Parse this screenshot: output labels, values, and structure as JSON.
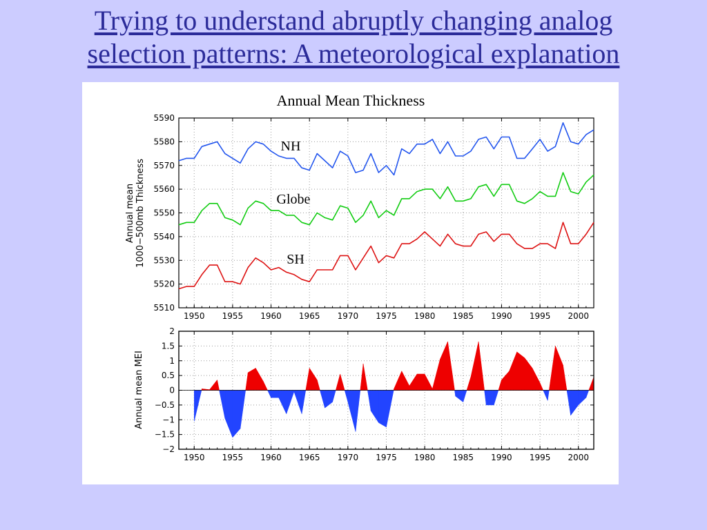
{
  "slide": {
    "title_line1": "Trying to understand abruptly changing analog",
    "title_line2": "selection patterns: A meteorological explanation"
  },
  "colors": {
    "background": "#ccccff",
    "title": "#2b2b99",
    "nh": "#2255ee",
    "globe": "#11cc11",
    "sh": "#dd1111",
    "positive_fill": "#ee0000",
    "negative_fill": "#2244ff"
  },
  "chart_data": [
    {
      "type": "line",
      "title": "Annual Mean Thickness",
      "ylabel_line1": "Annual mean",
      "ylabel_line2": "1000−500mb Thickness",
      "xlabel": "",
      "xlim": [
        1948,
        2002
      ],
      "ylim": [
        5510,
        5590
      ],
      "grid": true,
      "xticks": [
        1950,
        1955,
        1960,
        1965,
        1970,
        1975,
        1980,
        1985,
        1990,
        1995,
        2000
      ],
      "yticks": [
        5510,
        5520,
        5530,
        5540,
        5550,
        5560,
        5570,
        5580,
        5590
      ],
      "x": [
        1948,
        1949,
        1950,
        1951,
        1952,
        1953,
        1954,
        1955,
        1956,
        1957,
        1958,
        1959,
        1960,
        1961,
        1962,
        1963,
        1964,
        1965,
        1966,
        1967,
        1968,
        1969,
        1970,
        1971,
        1972,
        1973,
        1974,
        1975,
        1976,
        1977,
        1978,
        1979,
        1980,
        1981,
        1982,
        1983,
        1984,
        1985,
        1986,
        1987,
        1988,
        1989,
        1990,
        1991,
        1992,
        1993,
        1994,
        1995,
        1996,
        1997,
        1998,
        1999,
        2000,
        2001,
        2002
      ],
      "series": [
        {
          "name": "NH",
          "values": [
            5572,
            5573,
            5573,
            5578,
            5579,
            5580,
            5575,
            5573,
            5571,
            5577,
            5580,
            5579,
            5576,
            5574,
            5573,
            5573,
            5569,
            5568,
            5575,
            5572,
            5569,
            5576,
            5574,
            5567,
            5568,
            5575,
            5567,
            5570,
            5566,
            5577,
            5575,
            5579,
            5579,
            5581,
            5575,
            5580,
            5574,
            5574,
            5576,
            5581,
            5582,
            5577,
            5582,
            5582,
            5573,
            5573,
            5577,
            5581,
            5576,
            5578,
            5588,
            5580,
            5579,
            5583,
            5585
          ]
        },
        {
          "name": "Globe",
          "values": [
            5545,
            5546,
            5546,
            5551,
            5554,
            5554,
            5548,
            5547,
            5545,
            5552,
            5555,
            5554,
            5551,
            5551,
            5549,
            5549,
            5546,
            5545,
            5550,
            5548,
            5547,
            5553,
            5552,
            5546,
            5549,
            5555,
            5548,
            5551,
            5549,
            5556,
            5556,
            5559,
            5560,
            5560,
            5556,
            5561,
            5555,
            5555,
            5556,
            5561,
            5562,
            5557,
            5562,
            5562,
            5555,
            5554,
            5556,
            5559,
            5557,
            5557,
            5567,
            5559,
            5558,
            5563,
            5566
          ]
        },
        {
          "name": "SH",
          "values": [
            5518,
            5519,
            5519,
            5524,
            5528,
            5528,
            5521,
            5521,
            5520,
            5527,
            5531,
            5529,
            5526,
            5527,
            5525,
            5524,
            5522,
            5521,
            5526,
            5526,
            5526,
            5532,
            5532,
            5526,
            5531,
            5536,
            5529,
            5532,
            5531,
            5537,
            5537,
            5539,
            5542,
            5539,
            5536,
            5541,
            5537,
            5536,
            5536,
            5541,
            5542,
            5538,
            5541,
            5541,
            5537,
            5535,
            5535,
            5537,
            5537,
            5535,
            5546,
            5537,
            5537,
            5541,
            5546
          ]
        }
      ]
    },
    {
      "type": "area",
      "ylabel": "Annual  mean  MEI",
      "xlabel": "",
      "xlim": [
        1948,
        2002
      ],
      "ylim": [
        -2,
        2
      ],
      "grid": true,
      "xticks": [
        1950,
        1955,
        1960,
        1965,
        1970,
        1975,
        1980,
        1985,
        1990,
        1995,
        2000
      ],
      "yticks": [
        -2,
        -1.5,
        -1,
        -0.5,
        0,
        0.5,
        1,
        1.5,
        2
      ],
      "ytick_labels": [
        "−2",
        "−1.5",
        "−1",
        "−0.5",
        "0",
        "0.5",
        "1",
        "1.5",
        "2"
      ],
      "x": [
        1950,
        1951,
        1952,
        1953,
        1954,
        1955,
        1956,
        1957,
        1958,
        1959,
        1960,
        1961,
        1962,
        1963,
        1964,
        1965,
        1966,
        1967,
        1968,
        1969,
        1970,
        1971,
        1972,
        1973,
        1974,
        1975,
        1976,
        1977,
        1978,
        1979,
        1980,
        1981,
        1982,
        1983,
        1984,
        1985,
        1986,
        1987,
        1988,
        1989,
        1990,
        1991,
        1992,
        1993,
        1994,
        1995,
        1996,
        1997,
        1998,
        1999,
        2000,
        2001,
        2002
      ],
      "values": [
        -1.05,
        0.05,
        0.02,
        0.35,
        -0.95,
        -1.6,
        -1.3,
        0.6,
        0.75,
        0.3,
        -0.25,
        -0.25,
        -0.8,
        -0.05,
        -0.8,
        0.75,
        0.35,
        -0.6,
        -0.4,
        0.55,
        -0.4,
        -1.4,
        0.9,
        -0.7,
        -1.1,
        -1.25,
        0.05,
        0.65,
        0.15,
        0.55,
        0.55,
        0.05,
        1.05,
        1.65,
        -0.2,
        -0.4,
        0.45,
        1.65,
        -0.5,
        -0.5,
        0.35,
        0.65,
        1.3,
        1.1,
        0.75,
        0.25,
        -0.35,
        1.5,
        0.85,
        -0.85,
        -0.5,
        -0.25,
        0.45
      ]
    }
  ]
}
